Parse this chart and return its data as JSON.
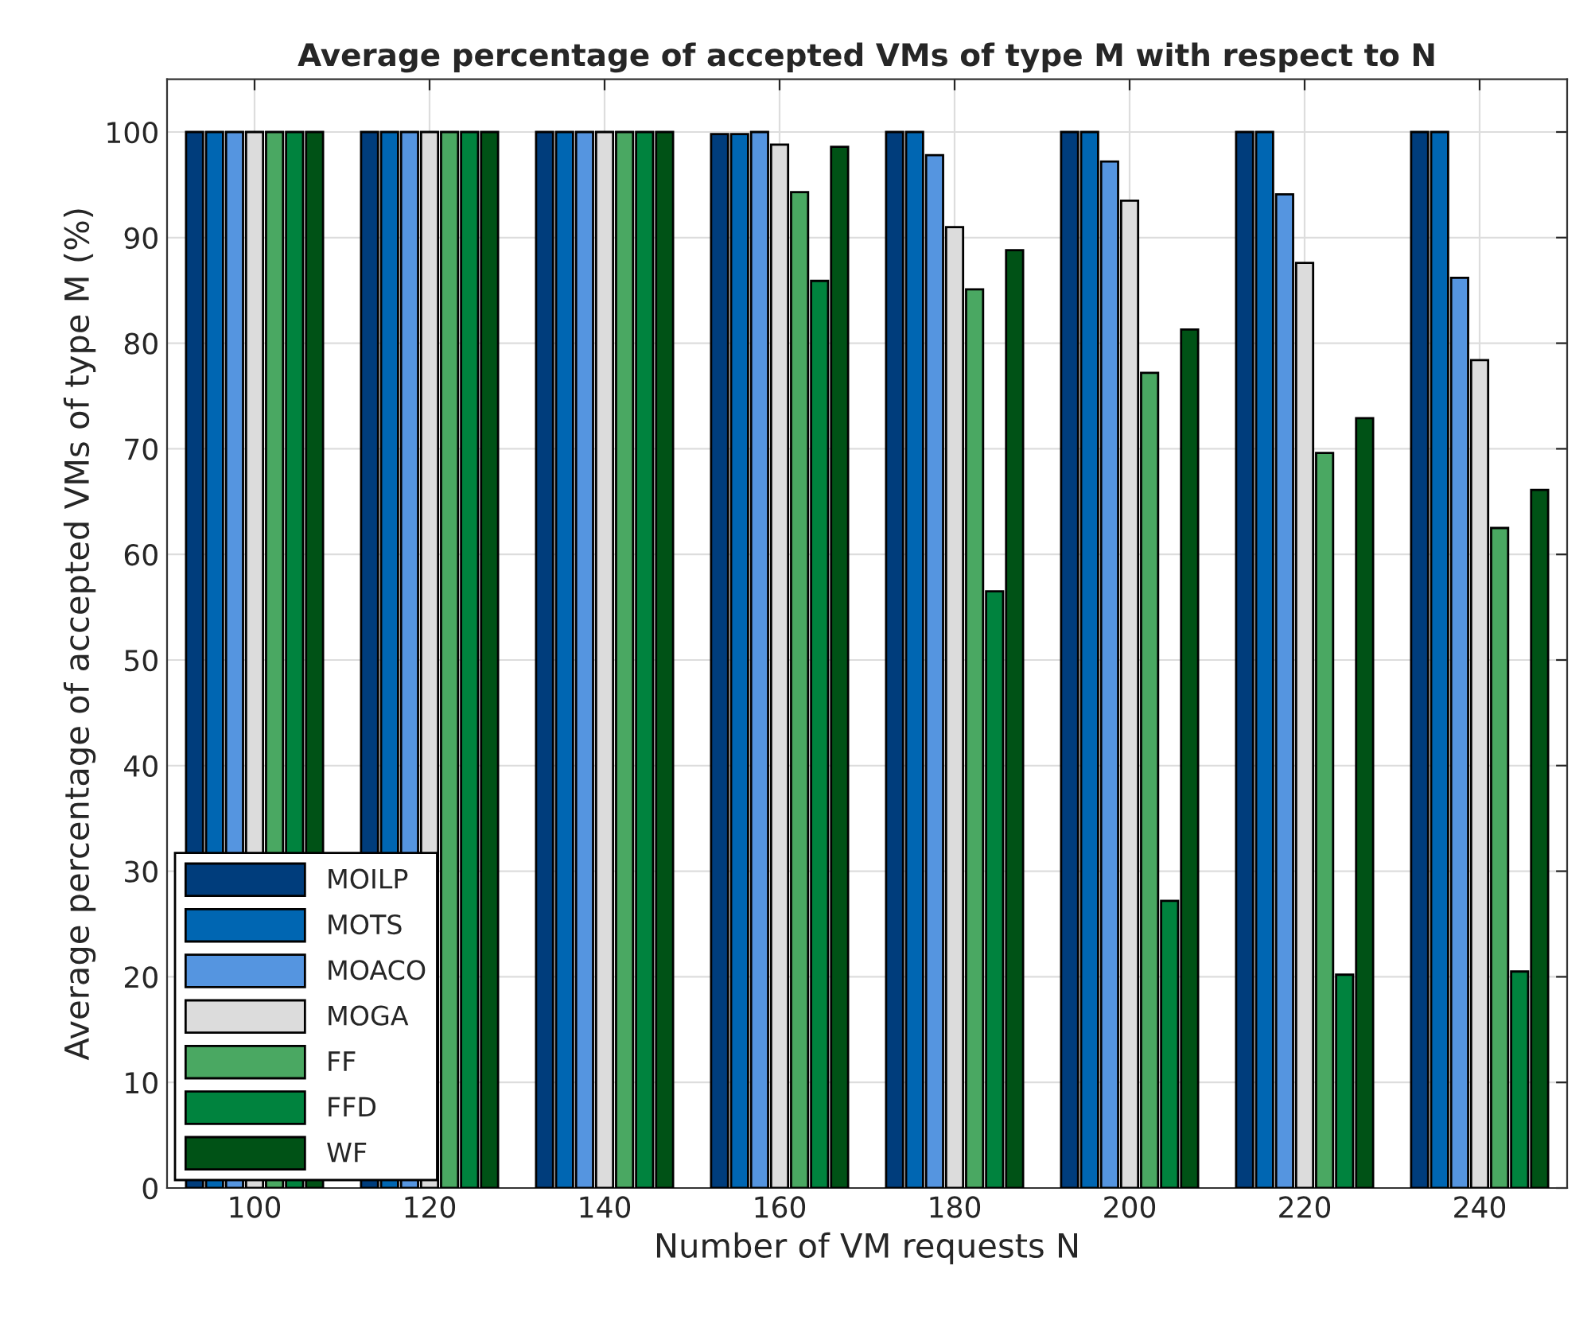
{
  "chart_data": {
    "type": "bar",
    "title": "Average percentage of accepted VMs of type M with respect to N",
    "xlabel": "Number of VM requests N",
    "ylabel": "Average percentage of accepted VMs of type M (%)",
    "categories": [
      "100",
      "120",
      "140",
      "160",
      "180",
      "200",
      "220",
      "240"
    ],
    "series": [
      {
        "name": "MOILP",
        "color": "#003d7c",
        "values": [
          100,
          100,
          100,
          99.8,
          100,
          100,
          100,
          100
        ]
      },
      {
        "name": "MOTS",
        "color": "#0066b2",
        "values": [
          100,
          100,
          100,
          99.8,
          100,
          100,
          100,
          100
        ]
      },
      {
        "name": "MOACO",
        "color": "#5595e0",
        "values": [
          100,
          100,
          100,
          100,
          97.8,
          97.2,
          94.1,
          86.2
        ]
      },
      {
        "name": "MOGA",
        "color": "#dcdcdc",
        "values": [
          100,
          100,
          100,
          98.8,
          91,
          93.5,
          87.6,
          78.4
        ]
      },
      {
        "name": "FF",
        "color": "#4aa862",
        "values": [
          100,
          100,
          100,
          94.3,
          85.1,
          77.2,
          69.6,
          62.5
        ]
      },
      {
        "name": "FFD",
        "color": "#00833e",
        "values": [
          100,
          100,
          100,
          85.9,
          56.5,
          27.2,
          20.2,
          20.5
        ]
      },
      {
        "name": "WF",
        "color": "#005216",
        "values": [
          100,
          100,
          100,
          98.6,
          88.8,
          81.3,
          72.9,
          66.1
        ]
      }
    ],
    "ylim": [
      0,
      105
    ],
    "yticks": [
      0,
      10,
      20,
      30,
      40,
      50,
      60,
      70,
      80,
      90,
      100
    ],
    "grid": true,
    "legend": "bottom left"
  }
}
